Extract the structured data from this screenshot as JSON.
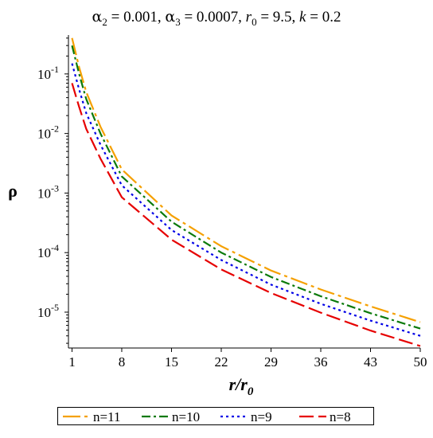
{
  "chart_data": {
    "type": "line",
    "title": "α₂ = 0.001, α₃ = 0.0007, r₀ = 9.5, k = 0.2",
    "title_parts": {
      "a2": "α",
      "a2_sub": "2",
      "a2_val": " = 0.001, ",
      "a3": "α",
      "a3_sub": "3",
      "a3_val": " = 0.0007, ",
      "r0": "r",
      "r0_sub": "0",
      "r0_val": " = 9.5, ",
      "k": "k",
      "k_val": " = 0.2"
    },
    "xlabel": "r/r",
    "xlabel_sub": "0",
    "ylabel": "ρ",
    "y_scale": "log",
    "xlim": [
      0.5,
      50
    ],
    "ylim": [
      2.5e-06,
      0.45
    ],
    "x_ticks": [
      1,
      8,
      15,
      22,
      29,
      36,
      43,
      50
    ],
    "y_ticks": [
      {
        "value": 0.1,
        "base": "10",
        "exp": "-1"
      },
      {
        "value": 0.01,
        "base": "10",
        "exp": "-2"
      },
      {
        "value": 0.001,
        "base": "10",
        "exp": "-3"
      },
      {
        "value": 0.0001,
        "base": "10",
        "exp": "-4"
      },
      {
        "value": 1e-05,
        "base": "10",
        "exp": "-5"
      }
    ],
    "grid": false,
    "legend_position": "bottom",
    "series": [
      {
        "name": "n=11",
        "color": "#F5A000",
        "dash": "long-dash-dot",
        "x": [
          1,
          2,
          3,
          5,
          8,
          15,
          22,
          29,
          36,
          43,
          50
        ],
        "y": [
          0.4,
          0.13,
          0.05,
          0.013,
          0.0025,
          0.00042,
          0.000128,
          5e-05,
          2.4e-05,
          1.25e-05,
          6.8e-06
        ]
      },
      {
        "name": "n=10",
        "color": "#0B7A0B",
        "dash": "dash-dot",
        "x": [
          1,
          2,
          3,
          5,
          8,
          15,
          22,
          29,
          36,
          43,
          50
        ],
        "y": [
          0.3,
          0.1,
          0.038,
          0.01,
          0.0019,
          0.00033,
          0.0001,
          3.9e-05,
          1.85e-05,
          9.6e-06,
          5.3e-06
        ]
      },
      {
        "name": "n=9",
        "color": "#0000E6",
        "dash": "dotted",
        "x": [
          1,
          2,
          3,
          5,
          8,
          15,
          22,
          29,
          36,
          43,
          50
        ],
        "y": [
          0.15,
          0.055,
          0.022,
          0.0065,
          0.00135,
          0.00024,
          7.5e-05,
          2.9e-05,
          1.38e-05,
          7.2e-06,
          4e-06
        ]
      },
      {
        "name": "n=8",
        "color": "#E60000",
        "dash": "long-dash",
        "x": [
          1,
          2,
          3,
          5,
          8,
          15,
          22,
          29,
          36,
          43,
          50
        ],
        "y": [
          0.07,
          0.028,
          0.012,
          0.0038,
          0.00085,
          0.000165,
          5.2e-05,
          2.1e-05,
          9.8e-06,
          4.9e-06,
          2.7e-06
        ]
      }
    ]
  }
}
